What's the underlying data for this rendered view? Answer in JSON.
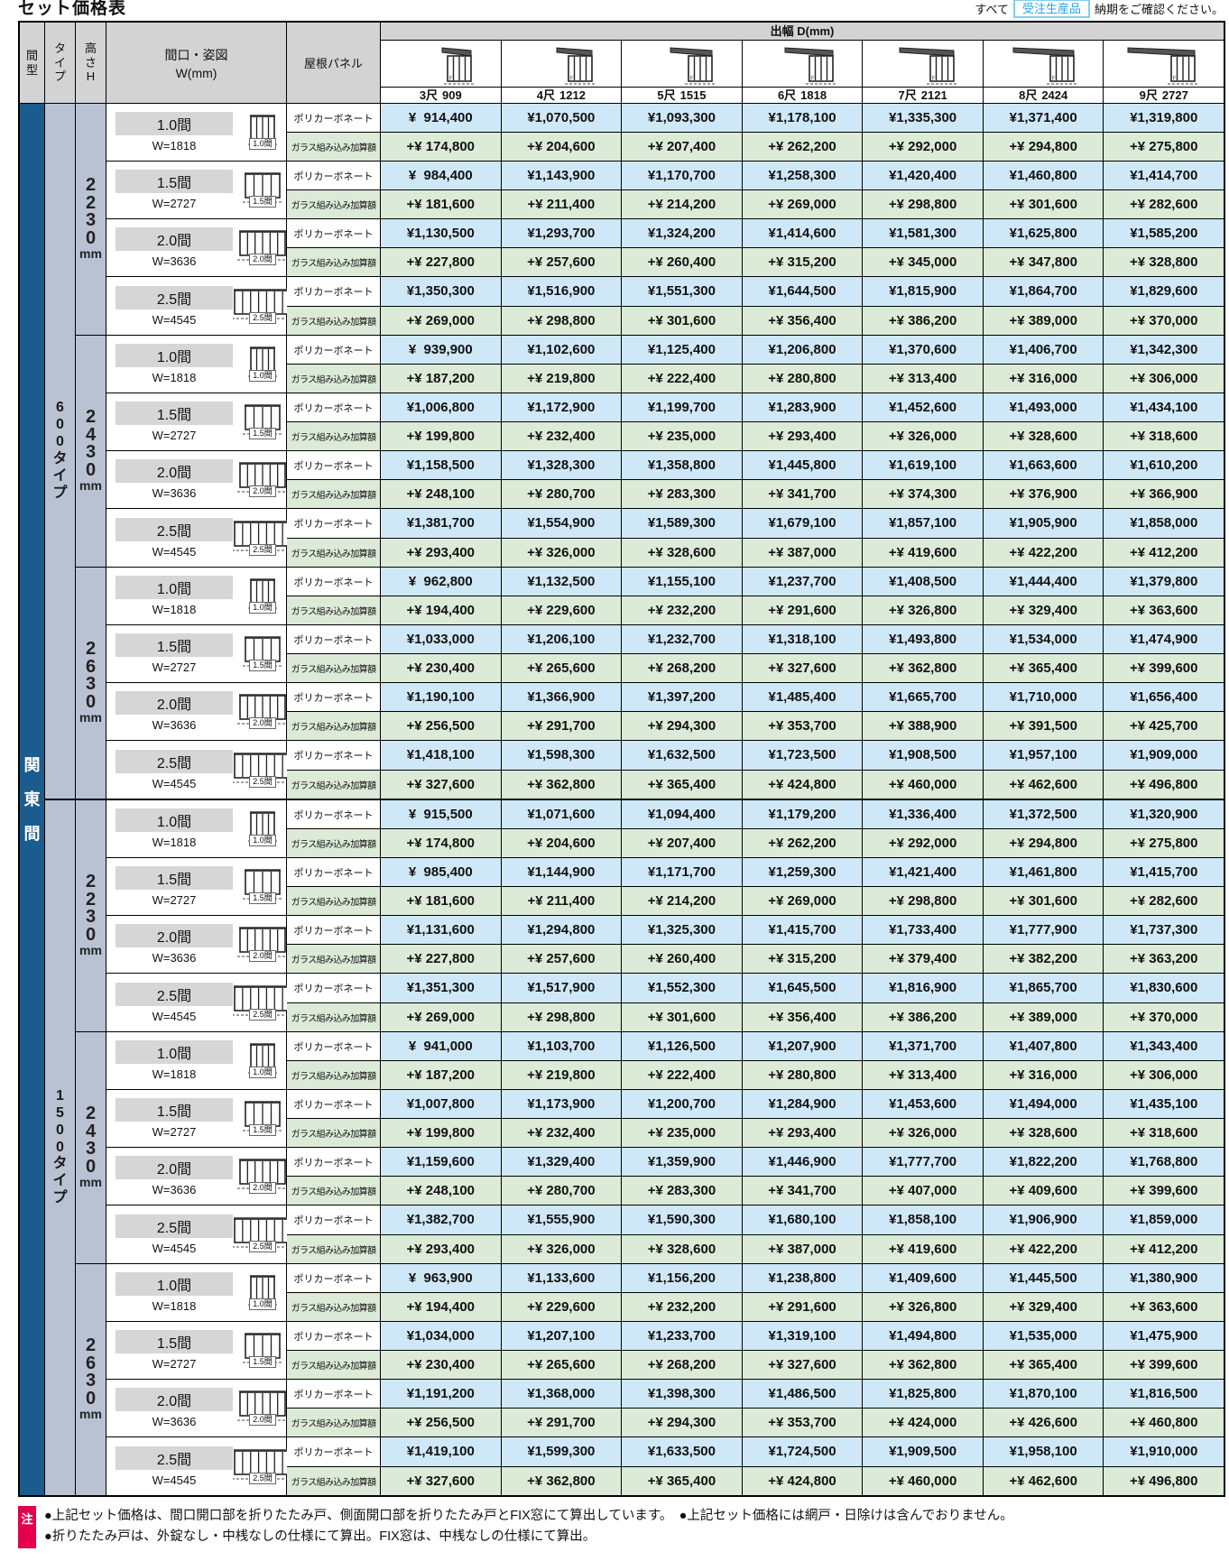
{
  "page": {
    "title": "セット価格表",
    "order_note": {
      "prefix": "すべて",
      "badge": "受注生産品",
      "suffix": "納期をご確認ください。"
    }
  },
  "icons": {
    "depth_header_icon": "awning-side-profile-diagram",
    "width_cell_icon": "folding-door-front-diagram"
  },
  "colors": {
    "magata_column_blue": "#1b5c8e",
    "type_height_column_lavender": "#b8c2d3",
    "poly_row_blue": "#cfe8f7",
    "glass_row_green": "#dcead8",
    "header_gray": "#d3d3d3",
    "badge_cyan": "#2aa3dc",
    "note_tag_red": "#e5004e"
  },
  "table": {
    "headers": {
      "magata": "間型",
      "type": "タイプ",
      "height": "高さH",
      "width_line1": "間口・姿図",
      "width_line2": "W(mm)",
      "roof": "屋根パネル",
      "depth": "出幅 D(mm)",
      "depth_cols": [
        {
          "shaku": "3尺",
          "mm": "909"
        },
        {
          "shaku": "4尺",
          "mm": "1212"
        },
        {
          "shaku": "5尺",
          "mm": "1515"
        },
        {
          "shaku": "6尺",
          "mm": "1818"
        },
        {
          "shaku": "7尺",
          "mm": "2121"
        },
        {
          "shaku": "8尺",
          "mm": "2424"
        },
        {
          "shaku": "9尺",
          "mm": "2727"
        }
      ]
    },
    "roof_rows": {
      "poly": "ポリカーボネート",
      "glass": "ガラス組み込み加算額"
    },
    "magata_value": "関東間",
    "types": [
      {
        "label": "600タイプ",
        "heights": [
          {
            "value": "2230",
            "unit": "mm",
            "widths": [
              {
                "label": "1.0間",
                "w_value": "W=1818",
                "poly": [
                  "¥  914,400",
                  "¥1,070,500",
                  "¥1,093,300",
                  "¥1,178,100",
                  "¥1,335,300",
                  "¥1,371,400",
                  "¥1,319,800"
                ],
                "glass": [
                  "+¥ 174,800",
                  "+¥ 204,600",
                  "+¥ 207,400",
                  "+¥ 262,200",
                  "+¥ 292,000",
                  "+¥ 294,800",
                  "+¥ 275,800"
                ]
              },
              {
                "label": "1.5間",
                "w_value": "W=2727",
                "poly": [
                  "¥  984,400",
                  "¥1,143,900",
                  "¥1,170,700",
                  "¥1,258,300",
                  "¥1,420,400",
                  "¥1,460,800",
                  "¥1,414,700"
                ],
                "glass": [
                  "+¥ 181,600",
                  "+¥ 211,400",
                  "+¥ 214,200",
                  "+¥ 269,000",
                  "+¥ 298,800",
                  "+¥ 301,600",
                  "+¥ 282,600"
                ]
              },
              {
                "label": "2.0間",
                "w_value": "W=3636",
                "poly": [
                  "¥1,130,500",
                  "¥1,293,700",
                  "¥1,324,200",
                  "¥1,414,600",
                  "¥1,581,300",
                  "¥1,625,800",
                  "¥1,585,200"
                ],
                "glass": [
                  "+¥ 227,800",
                  "+¥ 257,600",
                  "+¥ 260,400",
                  "+¥ 315,200",
                  "+¥ 345,000",
                  "+¥ 347,800",
                  "+¥ 328,800"
                ]
              },
              {
                "label": "2.5間",
                "w_value": "W=4545",
                "poly": [
                  "¥1,350,300",
                  "¥1,516,900",
                  "¥1,551,300",
                  "¥1,644,500",
                  "¥1,815,900",
                  "¥1,864,700",
                  "¥1,829,600"
                ],
                "glass": [
                  "+¥ 269,000",
                  "+¥ 298,800",
                  "+¥ 301,600",
                  "+¥ 356,400",
                  "+¥ 386,200",
                  "+¥ 389,000",
                  "+¥ 370,000"
                ]
              }
            ]
          },
          {
            "value": "2430",
            "unit": "mm",
            "widths": [
              {
                "label": "1.0間",
                "w_value": "W=1818",
                "poly": [
                  "¥  939,900",
                  "¥1,102,600",
                  "¥1,125,400",
                  "¥1,206,800",
                  "¥1,370,600",
                  "¥1,406,700",
                  "¥1,342,300"
                ],
                "glass": [
                  "+¥ 187,200",
                  "+¥ 219,800",
                  "+¥ 222,400",
                  "+¥ 280,800",
                  "+¥ 313,400",
                  "+¥ 316,000",
                  "+¥ 306,000"
                ]
              },
              {
                "label": "1.5間",
                "w_value": "W=2727",
                "poly": [
                  "¥1,006,800",
                  "¥1,172,900",
                  "¥1,199,700",
                  "¥1,283,900",
                  "¥1,452,600",
                  "¥1,493,000",
                  "¥1,434,100"
                ],
                "glass": [
                  "+¥ 199,800",
                  "+¥ 232,400",
                  "+¥ 235,000",
                  "+¥ 293,400",
                  "+¥ 326,000",
                  "+¥ 328,600",
                  "+¥ 318,600"
                ]
              },
              {
                "label": "2.0間",
                "w_value": "W=3636",
                "poly": [
                  "¥1,158,500",
                  "¥1,328,300",
                  "¥1,358,800",
                  "¥1,445,800",
                  "¥1,619,100",
                  "¥1,663,600",
                  "¥1,610,200"
                ],
                "glass": [
                  "+¥ 248,100",
                  "+¥ 280,700",
                  "+¥ 283,300",
                  "+¥ 341,700",
                  "+¥ 374,300",
                  "+¥ 376,900",
                  "+¥ 366,900"
                ]
              },
              {
                "label": "2.5間",
                "w_value": "W=4545",
                "poly": [
                  "¥1,381,700",
                  "¥1,554,900",
                  "¥1,589,300",
                  "¥1,679,100",
                  "¥1,857,100",
                  "¥1,905,900",
                  "¥1,858,000"
                ],
                "glass": [
                  "+¥ 293,400",
                  "+¥ 326,000",
                  "+¥ 328,600",
                  "+¥ 387,000",
                  "+¥ 419,600",
                  "+¥ 422,200",
                  "+¥ 412,200"
                ]
              }
            ]
          },
          {
            "value": "2630",
            "unit": "mm",
            "widths": [
              {
                "label": "1.0間",
                "w_value": "W=1818",
                "poly": [
                  "¥  962,800",
                  "¥1,132,500",
                  "¥1,155,100",
                  "¥1,237,700",
                  "¥1,408,500",
                  "¥1,444,400",
                  "¥1,379,800"
                ],
                "glass": [
                  "+¥ 194,400",
                  "+¥ 229,600",
                  "+¥ 232,200",
                  "+¥ 291,600",
                  "+¥ 326,800",
                  "+¥ 329,400",
                  "+¥ 363,600"
                ]
              },
              {
                "label": "1.5間",
                "w_value": "W=2727",
                "poly": [
                  "¥1,033,000",
                  "¥1,206,100",
                  "¥1,232,700",
                  "¥1,318,100",
                  "¥1,493,800",
                  "¥1,534,000",
                  "¥1,474,900"
                ],
                "glass": [
                  "+¥ 230,400",
                  "+¥ 265,600",
                  "+¥ 268,200",
                  "+¥ 327,600",
                  "+¥ 362,800",
                  "+¥ 365,400",
                  "+¥ 399,600"
                ]
              },
              {
                "label": "2.0間",
                "w_value": "W=3636",
                "poly": [
                  "¥1,190,100",
                  "¥1,366,900",
                  "¥1,397,200",
                  "¥1,485,400",
                  "¥1,665,700",
                  "¥1,710,000",
                  "¥1,656,400"
                ],
                "glass": [
                  "+¥ 256,500",
                  "+¥ 291,700",
                  "+¥ 294,300",
                  "+¥ 353,700",
                  "+¥ 388,900",
                  "+¥ 391,500",
                  "+¥ 425,700"
                ]
              },
              {
                "label": "2.5間",
                "w_value": "W=4545",
                "poly": [
                  "¥1,418,100",
                  "¥1,598,300",
                  "¥1,632,500",
                  "¥1,723,500",
                  "¥1,908,500",
                  "¥1,957,100",
                  "¥1,909,000"
                ],
                "glass": [
                  "+¥ 327,600",
                  "+¥ 362,800",
                  "+¥ 365,400",
                  "+¥ 424,800",
                  "+¥ 460,000",
                  "+¥ 462,600",
                  "+¥ 496,800"
                ]
              }
            ]
          }
        ]
      },
      {
        "label": "1500タイプ",
        "heights": [
          {
            "value": "2230",
            "unit": "mm",
            "widths": [
              {
                "label": "1.0間",
                "w_value": "W=1818",
                "poly": [
                  "¥  915,500",
                  "¥1,071,600",
                  "¥1,094,400",
                  "¥1,179,200",
                  "¥1,336,400",
                  "¥1,372,500",
                  "¥1,320,900"
                ],
                "glass": [
                  "+¥ 174,800",
                  "+¥ 204,600",
                  "+¥ 207,400",
                  "+¥ 262,200",
                  "+¥ 292,000",
                  "+¥ 294,800",
                  "+¥ 275,800"
                ]
              },
              {
                "label": "1.5間",
                "w_value": "W=2727",
                "poly": [
                  "¥  985,400",
                  "¥1,144,900",
                  "¥1,171,700",
                  "¥1,259,300",
                  "¥1,421,400",
                  "¥1,461,800",
                  "¥1,415,700"
                ],
                "glass": [
                  "+¥ 181,600",
                  "+¥ 211,400",
                  "+¥ 214,200",
                  "+¥ 269,000",
                  "+¥ 298,800",
                  "+¥ 301,600",
                  "+¥ 282,600"
                ]
              },
              {
                "label": "2.0間",
                "w_value": "W=3636",
                "poly": [
                  "¥1,131,600",
                  "¥1,294,800",
                  "¥1,325,300",
                  "¥1,415,700",
                  "¥1,733,400",
                  "¥1,777,900",
                  "¥1,737,300"
                ],
                "glass": [
                  "+¥ 227,800",
                  "+¥ 257,600",
                  "+¥ 260,400",
                  "+¥ 315,200",
                  "+¥ 379,400",
                  "+¥ 382,200",
                  "+¥ 363,200"
                ]
              },
              {
                "label": "2.5間",
                "w_value": "W=4545",
                "poly": [
                  "¥1,351,300",
                  "¥1,517,900",
                  "¥1,552,300",
                  "¥1,645,500",
                  "¥1,816,900",
                  "¥1,865,700",
                  "¥1,830,600"
                ],
                "glass": [
                  "+¥ 269,000",
                  "+¥ 298,800",
                  "+¥ 301,600",
                  "+¥ 356,400",
                  "+¥ 386,200",
                  "+¥ 389,000",
                  "+¥ 370,000"
                ]
              }
            ]
          },
          {
            "value": "2430",
            "unit": "mm",
            "widths": [
              {
                "label": "1.0間",
                "w_value": "W=1818",
                "poly": [
                  "¥  941,000",
                  "¥1,103,700",
                  "¥1,126,500",
                  "¥1,207,900",
                  "¥1,371,700",
                  "¥1,407,800",
                  "¥1,343,400"
                ],
                "glass": [
                  "+¥ 187,200",
                  "+¥ 219,800",
                  "+¥ 222,400",
                  "+¥ 280,800",
                  "+¥ 313,400",
                  "+¥ 316,000",
                  "+¥ 306,000"
                ]
              },
              {
                "label": "1.5間",
                "w_value": "W=2727",
                "poly": [
                  "¥1,007,800",
                  "¥1,173,900",
                  "¥1,200,700",
                  "¥1,284,900",
                  "¥1,453,600",
                  "¥1,494,000",
                  "¥1,435,100"
                ],
                "glass": [
                  "+¥ 199,800",
                  "+¥ 232,400",
                  "+¥ 235,000",
                  "+¥ 293,400",
                  "+¥ 326,000",
                  "+¥ 328,600",
                  "+¥ 318,600"
                ]
              },
              {
                "label": "2.0間",
                "w_value": "W=3636",
                "poly": [
                  "¥1,159,600",
                  "¥1,329,400",
                  "¥1,359,900",
                  "¥1,446,900",
                  "¥1,777,700",
                  "¥1,822,200",
                  "¥1,768,800"
                ],
                "glass": [
                  "+¥ 248,100",
                  "+¥ 280,700",
                  "+¥ 283,300",
                  "+¥ 341,700",
                  "+¥ 407,000",
                  "+¥ 409,600",
                  "+¥ 399,600"
                ]
              },
              {
                "label": "2.5間",
                "w_value": "W=4545",
                "poly": [
                  "¥1,382,700",
                  "¥1,555,900",
                  "¥1,590,300",
                  "¥1,680,100",
                  "¥1,858,100",
                  "¥1,906,900",
                  "¥1,859,000"
                ],
                "glass": [
                  "+¥ 293,400",
                  "+¥ 326,000",
                  "+¥ 328,600",
                  "+¥ 387,000",
                  "+¥ 419,600",
                  "+¥ 422,200",
                  "+¥ 412,200"
                ]
              }
            ]
          },
          {
            "value": "2630",
            "unit": "mm",
            "widths": [
              {
                "label": "1.0間",
                "w_value": "W=1818",
                "poly": [
                  "¥  963,900",
                  "¥1,133,600",
                  "¥1,156,200",
                  "¥1,238,800",
                  "¥1,409,600",
                  "¥1,445,500",
                  "¥1,380,900"
                ],
                "glass": [
                  "+¥ 194,400",
                  "+¥ 229,600",
                  "+¥ 232,200",
                  "+¥ 291,600",
                  "+¥ 326,800",
                  "+¥ 329,400",
                  "+¥ 363,600"
                ]
              },
              {
                "label": "1.5間",
                "w_value": "W=2727",
                "poly": [
                  "¥1,034,000",
                  "¥1,207,100",
                  "¥1,233,700",
                  "¥1,319,100",
                  "¥1,494,800",
                  "¥1,535,000",
                  "¥1,475,900"
                ],
                "glass": [
                  "+¥ 230,400",
                  "+¥ 265,600",
                  "+¥ 268,200",
                  "+¥ 327,600",
                  "+¥ 362,800",
                  "+¥ 365,400",
                  "+¥ 399,600"
                ]
              },
              {
                "label": "2.0間",
                "w_value": "W=3636",
                "poly": [
                  "¥1,191,200",
                  "¥1,368,000",
                  "¥1,398,300",
                  "¥1,486,500",
                  "¥1,825,800",
                  "¥1,870,100",
                  "¥1,816,500"
                ],
                "glass": [
                  "+¥ 256,500",
                  "+¥ 291,700",
                  "+¥ 294,300",
                  "+¥ 353,700",
                  "+¥ 424,000",
                  "+¥ 426,600",
                  "+¥ 460,800"
                ]
              },
              {
                "label": "2.5間",
                "w_value": "W=4545",
                "poly": [
                  "¥1,419,100",
                  "¥1,599,300",
                  "¥1,633,500",
                  "¥1,724,500",
                  "¥1,909,500",
                  "¥1,958,100",
                  "¥1,910,000"
                ],
                "glass": [
                  "+¥ 327,600",
                  "+¥ 362,800",
                  "+¥ 365,400",
                  "+¥ 424,800",
                  "+¥ 460,000",
                  "+¥ 462,600",
                  "+¥ 496,800"
                ]
              }
            ]
          }
        ]
      }
    ]
  },
  "footnotes": {
    "tag": "注",
    "lines": [
      "●上記セット価格は、間口開口部を折りたたみ戸、側面開口部を折りたたみ戸とFIX窓にて算出しています。　●上記セット価格には網戸・日除けは含んでおりません。",
      "●折りたたみ戸は、外錠なし・中桟なしの仕様にて算出。FIX窓は、中桟なしの仕様にて算出。"
    ]
  }
}
